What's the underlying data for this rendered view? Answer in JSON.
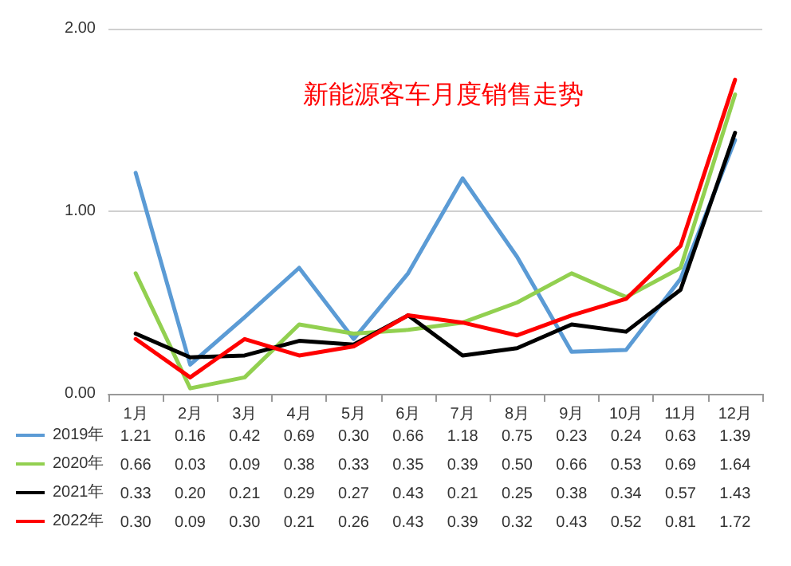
{
  "chart_data": {
    "type": "line",
    "title": "新能源客车月度销售走势",
    "categories": [
      "1月",
      "2月",
      "3月",
      "4月",
      "5月",
      "6月",
      "7月",
      "8月",
      "9月",
      "10月",
      "11月",
      "12月"
    ],
    "series": [
      {
        "name": "2019年",
        "color": "#5b9bd5",
        "values": [
          1.21,
          0.16,
          0.42,
          0.69,
          0.3,
          0.66,
          1.18,
          0.75,
          0.23,
          0.24,
          0.63,
          1.39
        ],
        "value_labels": [
          "1.21",
          "0.16",
          "0.42",
          "0.69",
          "0.30",
          "0.66",
          "1.18",
          "0.75",
          "0.23",
          "0.24",
          "0.63",
          "1.39"
        ]
      },
      {
        "name": "2020年",
        "color": "#92d050",
        "values": [
          0.66,
          0.03,
          0.09,
          0.38,
          0.33,
          0.35,
          0.39,
          0.5,
          0.66,
          0.53,
          0.69,
          1.64
        ],
        "value_labels": [
          "0.66",
          "0.03",
          "0.09",
          "0.38",
          "0.33",
          "0.35",
          "0.39",
          "0.50",
          "0.66",
          "0.53",
          "0.69",
          "1.64"
        ]
      },
      {
        "name": "2021年",
        "color": "#000000",
        "values": [
          0.33,
          0.2,
          0.21,
          0.29,
          0.27,
          0.43,
          0.21,
          0.25,
          0.38,
          0.34,
          0.57,
          1.43
        ],
        "value_labels": [
          "0.33",
          "0.20",
          "0.21",
          "0.29",
          "0.27",
          "0.43",
          "0.21",
          "0.25",
          "0.38",
          "0.34",
          "0.57",
          "1.43"
        ]
      },
      {
        "name": "2022年",
        "color": "#ff0000",
        "values": [
          0.3,
          0.09,
          0.3,
          0.21,
          0.26,
          0.43,
          0.39,
          0.32,
          0.43,
          0.52,
          0.81,
          1.72
        ],
        "value_labels": [
          "0.30",
          "0.09",
          "0.30",
          "0.21",
          "0.26",
          "0.43",
          "0.39",
          "0.32",
          "0.43",
          "0.52",
          "0.81",
          "1.72"
        ]
      }
    ],
    "ylim": [
      0,
      2
    ],
    "yticks": [
      {
        "value": 0,
        "label": "0.00"
      },
      {
        "value": 1,
        "label": "1.00"
      },
      {
        "value": 2,
        "label": "2.00"
      }
    ],
    "grid": "y",
    "legend": "bottom left",
    "marker": "none",
    "line_style": "solid"
  }
}
